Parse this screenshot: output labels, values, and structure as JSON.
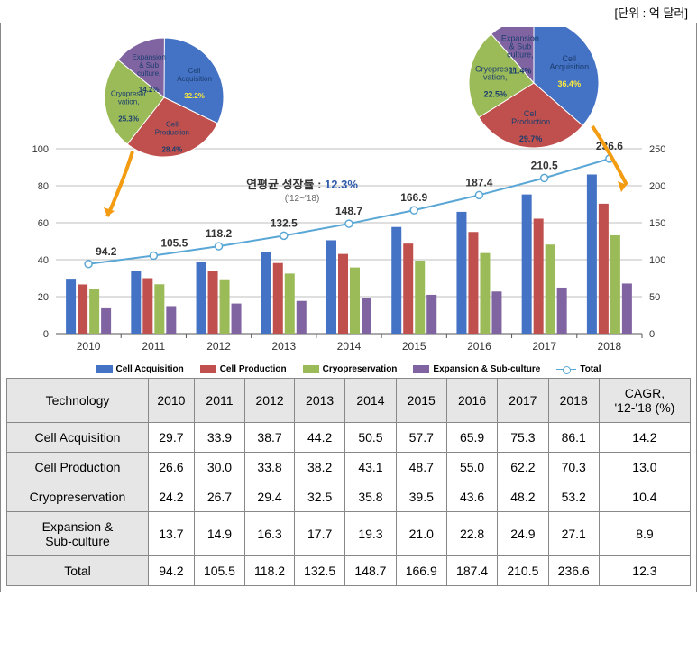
{
  "unit_label": "[단위 : 억 달러]",
  "colors": {
    "cell_acq": "#4472c4",
    "cell_prod": "#c0504d",
    "cryo": "#9bbb59",
    "exp": "#8064a2",
    "total_line": "#5aa7d6",
    "grid": "#bfbfbf",
    "axis": "#555",
    "bg": "#ffffff",
    "arrow": "#f39c12"
  },
  "chart": {
    "years": [
      "2010",
      "2011",
      "2012",
      "2013",
      "2014",
      "2015",
      "2016",
      "2017",
      "2018"
    ],
    "left_axis": {
      "min": 0,
      "max": 100,
      "step": 20
    },
    "right_axis": {
      "min": 0,
      "max": 250,
      "step": 50
    },
    "series": [
      {
        "key": "cell_acq",
        "label": "Cell Acquisition",
        "values": [
          29.7,
          33.9,
          38.7,
          44.2,
          50.5,
          57.7,
          65.9,
          75.3,
          86.1
        ]
      },
      {
        "key": "cell_prod",
        "label": "Cell Production",
        "values": [
          26.6,
          30.0,
          33.8,
          38.2,
          43.1,
          48.7,
          55.0,
          62.2,
          70.3
        ]
      },
      {
        "key": "cryo",
        "label": "Cryopreservation",
        "values": [
          24.2,
          26.7,
          29.4,
          32.5,
          35.8,
          39.5,
          43.6,
          48.2,
          53.2
        ]
      },
      {
        "key": "exp",
        "label": "Expansion & Sub-culture",
        "values": [
          13.7,
          14.9,
          16.3,
          17.7,
          19.3,
          21.0,
          22.8,
          24.9,
          27.1
        ]
      }
    ],
    "total": {
      "label": "Total",
      "values": [
        94.2,
        105.5,
        118.2,
        132.5,
        148.7,
        166.9,
        187.4,
        210.5,
        236.6
      ]
    },
    "cagr_label_1": "연평균 성장률 :",
    "cagr_value": "12.3%",
    "cagr_label_2": "('12~'18)"
  },
  "pies": {
    "left": {
      "slices": [
        {
          "key": "cell_acq",
          "label": "Cell\nAcquisition",
          "pct": "32.2%",
          "val": 32.2
        },
        {
          "key": "cell_prod",
          "label": "Cell\nProduction",
          "pct": "28.4%",
          "val": 28.4
        },
        {
          "key": "cryo",
          "label": "Cryopreser\nvation,",
          "pct": "25.3%",
          "val": 25.3
        },
        {
          "key": "exp",
          "label": "Expansion\n& Sub\nculture,",
          "pct": "14.2%",
          "val": 14.2
        }
      ]
    },
    "right": {
      "slices": [
        {
          "key": "cell_acq",
          "label": "Cell\nAcquisition",
          "pct": "36.4%",
          "val": 36.4
        },
        {
          "key": "cell_prod",
          "label": "Cell\nProduction",
          "pct": "29.7%",
          "val": 29.7
        },
        {
          "key": "cryo",
          "label": "Cryopreser\nvation,",
          "pct": "22.5%",
          "val": 22.5
        },
        {
          "key": "exp",
          "label": "Expansion\n& Sub\nculture,",
          "pct": "11.4%",
          "val": 11.4
        }
      ]
    }
  },
  "table": {
    "head": [
      "Technology",
      "2010",
      "2011",
      "2012",
      "2013",
      "2014",
      "2015",
      "2016",
      "2017",
      "2018",
      "CAGR,\n'12-'18 (%)"
    ],
    "rows": [
      [
        "Cell Acquisition",
        "29.7",
        "33.9",
        "38.7",
        "44.2",
        "50.5",
        "57.7",
        "65.9",
        "75.3",
        "86.1",
        "14.2"
      ],
      [
        "Cell Production",
        "26.6",
        "30.0",
        "33.8",
        "38.2",
        "43.1",
        "48.7",
        "55.0",
        "62.2",
        "70.3",
        "13.0"
      ],
      [
        "Cryopreservation",
        "24.2",
        "26.7",
        "29.4",
        "32.5",
        "35.8",
        "39.5",
        "43.6",
        "48.2",
        "53.2",
        "10.4"
      ],
      [
        "Expansion &\nSub-culture",
        "13.7",
        "14.9",
        "16.3",
        "17.7",
        "19.3",
        "21.0",
        "22.8",
        "24.9",
        "27.1",
        "8.9"
      ],
      [
        "Total",
        "94.2",
        "105.5",
        "118.2",
        "132.5",
        "148.7",
        "166.9",
        "187.4",
        "210.5",
        "236.6",
        "12.3"
      ]
    ]
  }
}
